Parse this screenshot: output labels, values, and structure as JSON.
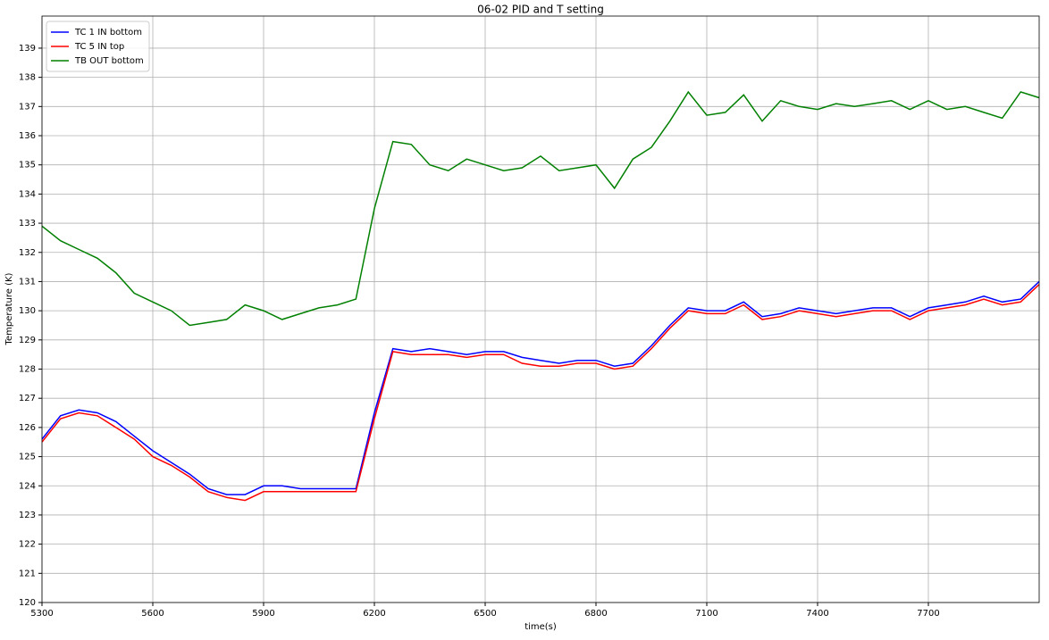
{
  "chart_data": {
    "type": "line",
    "title": "06-02 PID and T setting",
    "xlabel": "time(s)",
    "ylabel": "Temperature (K)",
    "x": [
      5300,
      5350,
      5400,
      5450,
      5500,
      5550,
      5600,
      5650,
      5700,
      5750,
      5800,
      5850,
      5900,
      5950,
      6000,
      6050,
      6100,
      6150,
      6200,
      6250,
      6300,
      6350,
      6400,
      6450,
      6500,
      6550,
      6600,
      6650,
      6700,
      6750,
      6800,
      6850,
      6900,
      6950,
      7000,
      7050,
      7100,
      7150,
      7200,
      7250,
      7300,
      7350,
      7400,
      7450,
      7500,
      7550,
      7600,
      7650,
      7700,
      7750,
      7800,
      7850,
      7900,
      7950,
      8000
    ],
    "series": [
      {
        "name": "TC 1 IN bottom",
        "color": "#0000ff",
        "values": [
          125.6,
          126.4,
          126.6,
          126.5,
          126.2,
          125.7,
          125.2,
          124.8,
          124.4,
          123.9,
          123.7,
          123.7,
          124.0,
          124.0,
          123.9,
          123.9,
          123.9,
          123.9,
          126.5,
          128.7,
          128.6,
          128.7,
          128.6,
          128.5,
          128.6,
          128.6,
          128.4,
          128.3,
          128.2,
          128.3,
          128.3,
          128.1,
          128.2,
          128.8,
          129.5,
          130.1,
          130.0,
          130.0,
          130.3,
          129.8,
          129.9,
          130.1,
          130.0,
          129.9,
          130.0,
          130.1,
          130.1,
          129.8,
          130.1,
          130.2,
          130.3,
          130.5,
          130.3,
          130.4,
          131.0
        ]
      },
      {
        "name": "TC 5 IN top",
        "color": "#ff0000",
        "values": [
          125.5,
          126.3,
          126.5,
          126.4,
          126.0,
          125.6,
          125.0,
          124.7,
          124.3,
          123.8,
          123.6,
          123.5,
          123.8,
          123.8,
          123.8,
          123.8,
          123.8,
          123.8,
          126.3,
          128.6,
          128.5,
          128.5,
          128.5,
          128.4,
          128.5,
          128.5,
          128.2,
          128.1,
          128.1,
          128.2,
          128.2,
          128.0,
          128.1,
          128.7,
          129.4,
          130.0,
          129.9,
          129.9,
          130.2,
          129.7,
          129.8,
          130.0,
          129.9,
          129.8,
          129.9,
          130.0,
          130.0,
          129.7,
          130.0,
          130.1,
          130.2,
          130.4,
          130.2,
          130.3,
          130.9
        ]
      },
      {
        "name": "TB OUT bottom",
        "color": "#008000",
        "values": [
          132.9,
          132.4,
          132.1,
          131.8,
          131.3,
          130.6,
          130.3,
          130.0,
          129.5,
          129.6,
          129.7,
          130.2,
          130.0,
          129.7,
          129.9,
          130.1,
          130.2,
          130.4,
          133.5,
          135.8,
          135.7,
          135.0,
          134.8,
          135.2,
          135.0,
          134.8,
          134.9,
          135.3,
          134.8,
          134.9,
          135.0,
          134.2,
          135.2,
          135.6,
          136.5,
          137.5,
          136.7,
          136.8,
          137.4,
          136.5,
          137.2,
          137.0,
          136.9,
          137.1,
          137.0,
          137.1,
          137.2,
          136.9,
          137.2,
          136.9,
          137.0,
          136.8,
          136.6,
          137.5,
          137.3
        ]
      }
    ],
    "xlim": [
      5300,
      8000
    ],
    "ylim": [
      120,
      140.1
    ],
    "xticks": [
      5300,
      5600,
      5900,
      6200,
      6500,
      6800,
      7100,
      7400,
      7700
    ],
    "yticks": [
      120,
      121,
      122,
      123,
      124,
      125,
      126,
      127,
      128,
      129,
      130,
      131,
      132,
      133,
      134,
      135,
      136,
      137,
      138,
      139
    ],
    "grid": true,
    "legend": "upper left"
  }
}
